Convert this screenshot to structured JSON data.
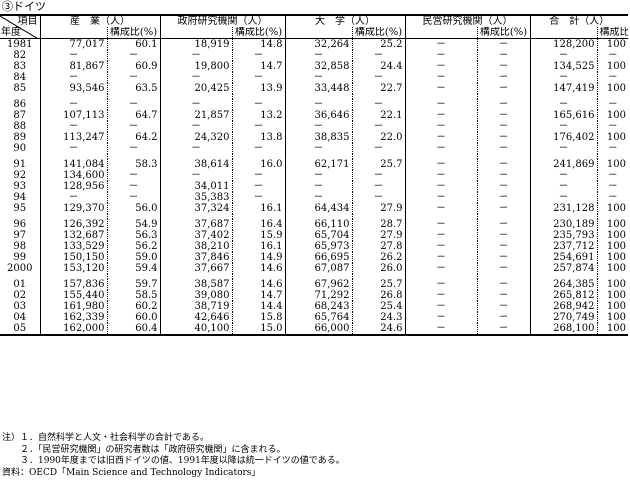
{
  "title": "③ドイツ",
  "header": {
    "item": "項目",
    "year": "年度",
    "groups": [
      "産　業（人）",
      "政府研究機関（人）",
      "大　学（人）",
      "民営研究機関（人）",
      "合　計（人）"
    ],
    "ratio_label": "構成比(%)"
  },
  "rows": [
    {
      "year": "1981",
      "v": [
        "77,017",
        "60.1",
        "18,919",
        "14.8",
        "32,264",
        "25.2",
        "－",
        "－",
        "128,200",
        "100"
      ],
      "gap": false
    },
    {
      "year": "82",
      "v": [
        "－",
        "－",
        "－",
        "－",
        "－",
        "－",
        "－",
        "－",
        "－",
        "－"
      ],
      "gap": false
    },
    {
      "year": "83",
      "v": [
        "81,867",
        "60.9",
        "19,800",
        "14.7",
        "32,858",
        "24.4",
        "－",
        "－",
        "134,525",
        "100"
      ],
      "gap": false
    },
    {
      "year": "84",
      "v": [
        "－",
        "－",
        "－",
        "－",
        "－",
        "－",
        "－",
        "－",
        "－",
        "－"
      ],
      "gap": false
    },
    {
      "year": "85",
      "v": [
        "93,546",
        "63.5",
        "20,425",
        "13.9",
        "33,448",
        "22.7",
        "－",
        "－",
        "147,419",
        "100"
      ],
      "gap": false
    },
    {
      "year": "86",
      "v": [
        "－",
        "－",
        "－",
        "－",
        "－",
        "－",
        "－",
        "－",
        "－",
        "－"
      ],
      "gap": true
    },
    {
      "year": "87",
      "v": [
        "107,113",
        "64.7",
        "21,857",
        "13.2",
        "36,646",
        "22.1",
        "－",
        "－",
        "165,616",
        "100"
      ],
      "gap": false
    },
    {
      "year": "88",
      "v": [
        "－",
        "－",
        "－",
        "－",
        "－",
        "－",
        "－",
        "－",
        "－",
        "－"
      ],
      "gap": false
    },
    {
      "year": "89",
      "v": [
        "113,247",
        "64.2",
        "24,320",
        "13.8",
        "38,835",
        "22.0",
        "－",
        "－",
        "176,402",
        "100"
      ],
      "gap": false
    },
    {
      "year": "90",
      "v": [
        "－",
        "－",
        "－",
        "－",
        "－",
        "－",
        "－",
        "－",
        "－",
        "－"
      ],
      "gap": false
    },
    {
      "year": "91",
      "v": [
        "141,084",
        "58.3",
        "38,614",
        "16.0",
        "62,171",
        "25.7",
        "－",
        "－",
        "241,869",
        "100"
      ],
      "gap": true
    },
    {
      "year": "92",
      "v": [
        "134,600",
        "－",
        "－",
        "－",
        "－",
        "－",
        "－",
        "－",
        "－",
        "－"
      ],
      "gap": false
    },
    {
      "year": "93",
      "v": [
        "128,956",
        "－",
        "34,011",
        "－",
        "－",
        "－",
        "－",
        "－",
        "－",
        "－"
      ],
      "gap": false
    },
    {
      "year": "94",
      "v": [
        "－",
        "－",
        "35,383",
        "－",
        "－",
        "－",
        "－",
        "－",
        "－",
        "－"
      ],
      "gap": false
    },
    {
      "year": "95",
      "v": [
        "129,370",
        "56.0",
        "37,324",
        "16.1",
        "64,434",
        "27.9",
        "－",
        "－",
        "231,128",
        "100"
      ],
      "gap": false
    },
    {
      "year": "96",
      "v": [
        "126,392",
        "54.9",
        "37,687",
        "16.4",
        "66,110",
        "28.7",
        "－",
        "－",
        "230,189",
        "100"
      ],
      "gap": true
    },
    {
      "year": "97",
      "v": [
        "132,687",
        "56.3",
        "37,402",
        "15.9",
        "65,704",
        "27.9",
        "－",
        "－",
        "235,793",
        "100"
      ],
      "gap": false
    },
    {
      "year": "98",
      "v": [
        "133,529",
        "56.2",
        "38,210",
        "16.1",
        "65,973",
        "27.8",
        "－",
        "－",
        "237,712",
        "100"
      ],
      "gap": false
    },
    {
      "year": "99",
      "v": [
        "150,150",
        "59.0",
        "37,846",
        "14.9",
        "66,695",
        "26.2",
        "－",
        "－",
        "254,691",
        "100"
      ],
      "gap": false
    },
    {
      "year": "2000",
      "v": [
        "153,120",
        "59.4",
        "37,667",
        "14.6",
        "67,087",
        "26.0",
        "－",
        "－",
        "257,874",
        "100"
      ],
      "gap": false
    },
    {
      "year": "01",
      "v": [
        "157,836",
        "59.7",
        "38,587",
        "14.6",
        "67,962",
        "25.7",
        "－",
        "－",
        "264,385",
        "100"
      ],
      "gap": true
    },
    {
      "year": "02",
      "v": [
        "155,440",
        "58.5",
        "39,080",
        "14.7",
        "71,292",
        "26.8",
        "－",
        "－",
        "265,812",
        "100"
      ],
      "gap": false
    },
    {
      "year": "03",
      "v": [
        "161,980",
        "60.2",
        "38,719",
        "14.4",
        "68,243",
        "25.4",
        "－",
        "－",
        "268,942",
        "100"
      ],
      "gap": false
    },
    {
      "year": "04",
      "v": [
        "162,339",
        "60.0",
        "42,646",
        "15.8",
        "65,764",
        "24.3",
        "－",
        "－",
        "270,749",
        "100"
      ],
      "gap": false
    },
    {
      "year": "05",
      "v": [
        "162,000",
        "60.4",
        "40,100",
        "15.0",
        "66,000",
        "24.6",
        "－",
        "－",
        "268,100",
        "100"
      ],
      "gap": false
    }
  ],
  "notes": [
    "注）１．自然科学と人文・社会科学の合計である。",
    "　　２．「民営研究機関」の研究者数は「政府研究機関」に含まれる。",
    "　　３．1990年度までは旧西ドイツの値、1991年度以降は統一ドイツの値である。",
    "資料：OECD「Main Science and Technology Indicators」"
  ]
}
